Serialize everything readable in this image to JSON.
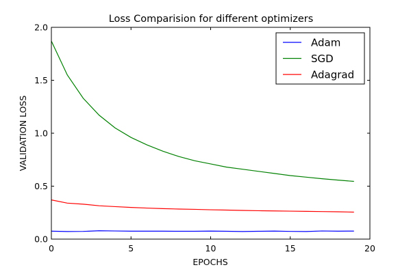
{
  "chart_data": {
    "type": "line",
    "title": "Loss Comparision for different optimizers",
    "xlabel": "EPOCHS",
    "ylabel": "VALIDATION LOSS",
    "xlim": [
      0,
      20
    ],
    "ylim": [
      0,
      2.0
    ],
    "x_ticks": [
      0,
      5,
      10,
      15,
      20
    ],
    "x_tick_labels": [
      "0",
      "5",
      "10",
      "15",
      "20"
    ],
    "y_ticks": [
      0,
      0.5,
      1.0,
      1.5,
      2.0
    ],
    "y_tick_labels": [
      "0.0",
      "0.5",
      "1.0",
      "1.5",
      "2.0"
    ],
    "grid": false,
    "legend_position": "top-right",
    "x": [
      0,
      1,
      2,
      3,
      4,
      5,
      6,
      7,
      8,
      9,
      10,
      11,
      12,
      13,
      14,
      15,
      16,
      17,
      18,
      19
    ],
    "series": [
      {
        "name": "Adam",
        "color": "#0000ff",
        "values": [
          0.075,
          0.072,
          0.073,
          0.079,
          0.077,
          0.075,
          0.075,
          0.075,
          0.074,
          0.074,
          0.076,
          0.074,
          0.072,
          0.074,
          0.076,
          0.073,
          0.072,
          0.077,
          0.075,
          0.076
        ]
      },
      {
        "name": "SGD",
        "color": "#008000",
        "values": [
          1.87,
          1.55,
          1.33,
          1.17,
          1.05,
          0.96,
          0.89,
          0.83,
          0.78,
          0.74,
          0.71,
          0.68,
          0.66,
          0.64,
          0.62,
          0.6,
          0.585,
          0.57,
          0.557,
          0.545
        ]
      },
      {
        "name": "Adagrad",
        "color": "#ff0000",
        "values": [
          0.37,
          0.34,
          0.33,
          0.315,
          0.307,
          0.299,
          0.293,
          0.288,
          0.284,
          0.281,
          0.277,
          0.274,
          0.271,
          0.268,
          0.266,
          0.264,
          0.262,
          0.26,
          0.258,
          0.255
        ]
      }
    ]
  }
}
